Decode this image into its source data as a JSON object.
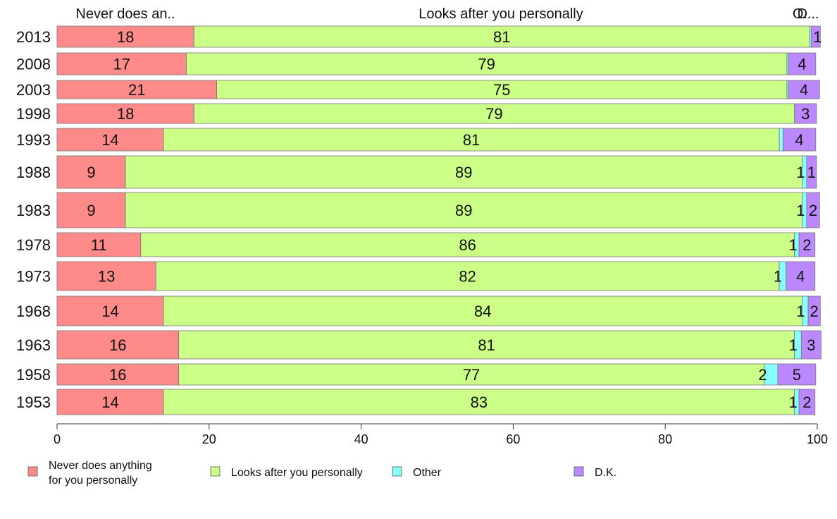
{
  "chart_data": {
    "type": "bar",
    "orientation": "horizontal",
    "stacked": true,
    "categories": [
      "2013",
      "2008",
      "2003",
      "1998",
      "1993",
      "1988",
      "1983",
      "1978",
      "1973",
      "1968",
      "1963",
      "1958",
      "1953"
    ],
    "series": [
      {
        "name": "Never does anything for you personally",
        "color": "#ff8a8a",
        "values": [
          18,
          17,
          21,
          18,
          14,
          9,
          9,
          11,
          13,
          14,
          16,
          16,
          14
        ],
        "labels": [
          "18",
          "17",
          "21",
          "18",
          "14",
          "9",
          "9",
          "11",
          "13",
          "14",
          "16",
          "16",
          "14"
        ]
      },
      {
        "name": "Looks after you personally",
        "color": "#ccff88",
        "values": [
          81,
          79,
          75,
          79,
          81,
          89,
          89,
          86,
          82,
          84,
          81,
          77,
          83
        ],
        "labels": [
          "81",
          "79",
          "75",
          "79",
          "81",
          "89",
          "89",
          "86",
          "82",
          "84",
          "81",
          "77",
          "83"
        ]
      },
      {
        "name": "Other",
        "color": "#88ffff",
        "values": [
          0.2,
          0.2,
          0.2,
          0,
          0.5,
          0.6,
          0.6,
          0.6,
          0.9,
          0.8,
          0.9,
          1.8,
          0.6
        ],
        "labels": [
          "",
          "",
          "",
          "",
          "",
          "1",
          "1",
          "1",
          "1",
          "1",
          "1",
          "2",
          "1"
        ]
      },
      {
        "name": "D.K.",
        "color": "#bb88ff",
        "values": [
          1.2,
          3.6,
          4.1,
          2.9,
          4.3,
          1.3,
          1.7,
          2.1,
          3.8,
          1.6,
          2.6,
          5.0,
          2.1
        ],
        "labels": [
          "1",
          "4",
          "4",
          "3",
          "4",
          "1",
          "2",
          "2",
          "4",
          "2",
          "3",
          "5",
          "2"
        ]
      }
    ],
    "top_labels": [
      "Never does an..",
      "Looks after you personally",
      "O...",
      "D..."
    ],
    "xlim": [
      0,
      100
    ],
    "x_ticks": [
      "0",
      "20",
      "40",
      "60",
      "80",
      "100"
    ],
    "legend": {
      "position": "bottom",
      "items": [
        {
          "lines": [
            "Never does anything",
            "for you personally"
          ],
          "color": "#ff8a8a"
        },
        {
          "lines": [
            "Looks after you personally"
          ],
          "color": "#ccff88"
        },
        {
          "lines": [
            "Other"
          ],
          "color": "#88ffff"
        },
        {
          "lines": [
            "D.K."
          ],
          "color": "#bb88ff"
        }
      ]
    },
    "grid": false
  }
}
